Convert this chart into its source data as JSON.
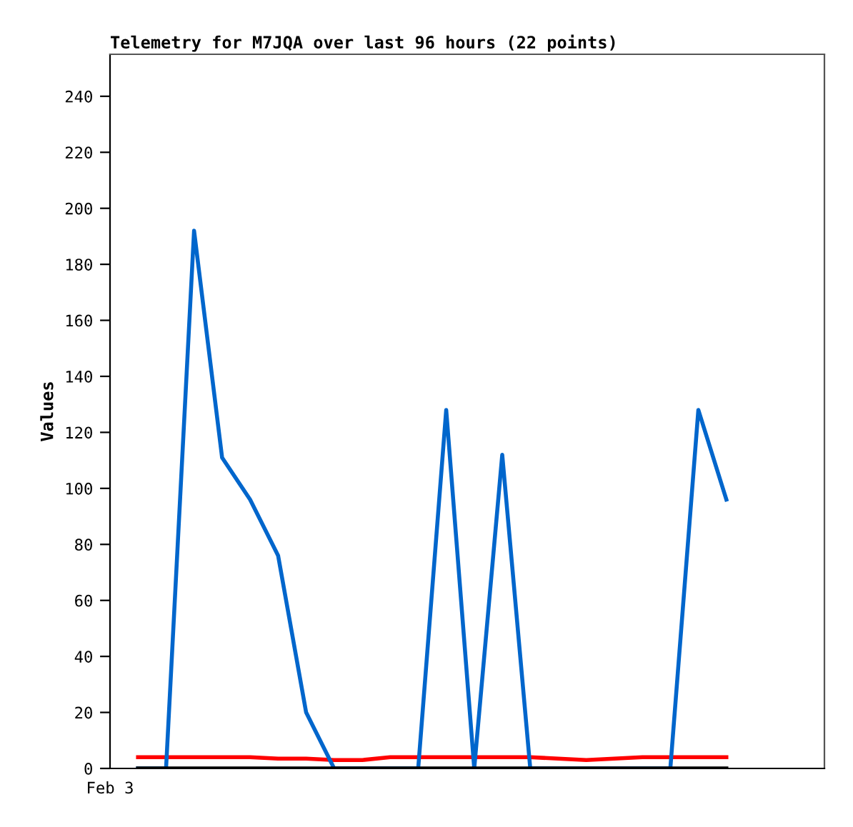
{
  "chart_data": {
    "type": "line",
    "title": "Telemetry for M7JQA over last 96 hours (22 points)",
    "ylabel": "Values",
    "categories": [
      null,
      null,
      null,
      null,
      null,
      null,
      null,
      null,
      null,
      null,
      null,
      null,
      null,
      null,
      null,
      null,
      null,
      null,
      null,
      null,
      null,
      null
    ],
    "annotations": [
      "Feb 3"
    ],
    "ylim": [
      0,
      255
    ],
    "yticks": [
      0,
      20,
      40,
      60,
      80,
      100,
      120,
      140,
      160,
      180,
      200,
      220,
      240
    ],
    "series": [
      {
        "color": "#ff0000",
        "values": [
          4,
          4,
          4,
          4,
          4,
          3.5,
          3.5,
          3,
          3,
          4,
          4,
          4,
          4,
          4,
          4,
          3.5,
          3,
          3.5,
          4,
          4,
          4,
          4
        ]
      },
      {
        "color": "#0066cc",
        "values": [
          0,
          0,
          192,
          111,
          96,
          76,
          20,
          0,
          0,
          0,
          0,
          128,
          0,
          112,
          0,
          0,
          0,
          0,
          0,
          0,
          128,
          96
        ]
      },
      {
        "color": "#000000",
        "values": [
          0,
          0,
          0,
          0,
          0,
          0,
          0,
          0,
          0,
          0,
          0,
          0,
          0,
          0,
          0,
          0,
          0,
          0,
          0,
          0,
          0,
          0
        ]
      }
    ],
    "grid": false,
    "marker": "none",
    "line_style": "solid"
  }
}
